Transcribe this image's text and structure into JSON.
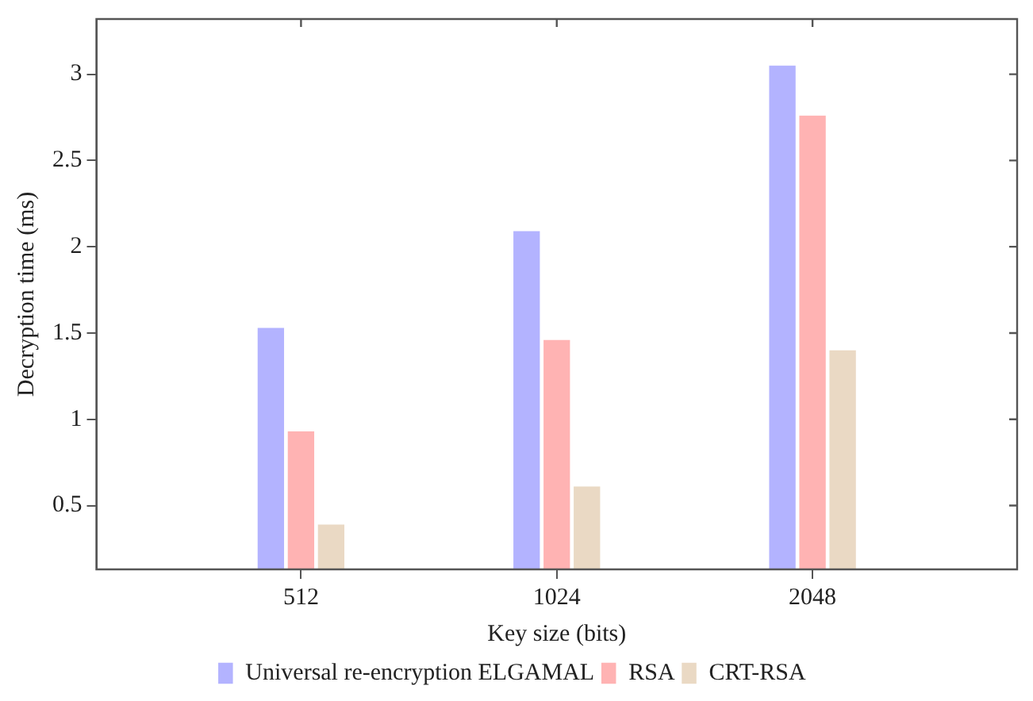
{
  "chart_data": {
    "type": "bar",
    "xlabel": "Key size (bits)",
    "ylabel": "Decryption time (ms)",
    "categories": [
      "512",
      "1024",
      "2048"
    ],
    "series": [
      {
        "name": "Universal re-encryption ELGAMAL",
        "color": "#b3b3ff",
        "values": [
          1.53,
          2.09,
          3.05
        ]
      },
      {
        "name": "RSA",
        "color": "#ffb3b3",
        "values": [
          0.93,
          1.46,
          2.76
        ]
      },
      {
        "name": "CRT-RSA",
        "color": "#ead9c4",
        "values": [
          0.39,
          0.61,
          1.4
        ]
      }
    ],
    "ylim": [
      0.13,
      3.32
    ],
    "yticks": [
      {
        "value": 0.5,
        "label": "0.5"
      },
      1,
      {
        "value": 1.5,
        "label": "1.5"
      },
      2,
      {
        "value": 2.5,
        "label": "2.5"
      },
      3
    ],
    "grid": false,
    "legend": "bottom"
  }
}
